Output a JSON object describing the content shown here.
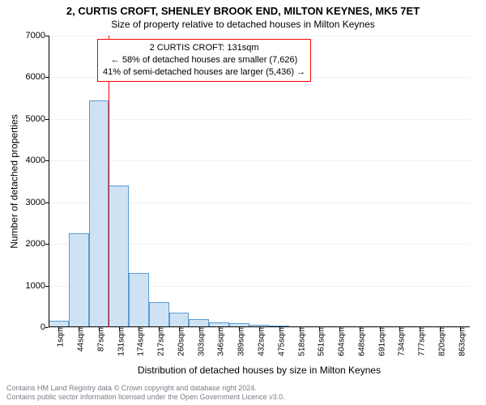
{
  "chart": {
    "type": "histogram",
    "title": "2, CURTIS CROFT, SHENLEY BROOK END, MILTON KEYNES, MK5 7ET",
    "subtitle": "Size of property relative to detached houses in Milton Keynes",
    "y_axis": {
      "label": "Number of detached properties",
      "min": 0,
      "max": 7000,
      "tick_step": 1000,
      "tick_labels": [
        "0",
        "1000",
        "2000",
        "3000",
        "4000",
        "5000",
        "6000",
        "7000"
      ],
      "label_fontsize": 12,
      "tick_fontsize": 11
    },
    "x_axis": {
      "label": "Distribution of detached houses by size in Milton Keynes",
      "tick_labels": [
        "1sqm",
        "44sqm",
        "87sqm",
        "131sqm",
        "174sqm",
        "217sqm",
        "260sqm",
        "303sqm",
        "346sqm",
        "389sqm",
        "432sqm",
        "475sqm",
        "518sqm",
        "561sqm",
        "604sqm",
        "648sqm",
        "691sqm",
        "734sqm",
        "777sqm",
        "820sqm",
        "863sqm"
      ],
      "label_fontsize": 12,
      "tick_fontsize": 10
    },
    "bars": {
      "values": [
        150,
        2250,
        5450,
        3400,
        1300,
        600,
        350,
        200,
        110,
        100,
        60,
        30,
        25,
        20,
        15,
        10,
        8,
        6,
        5,
        4,
        3
      ],
      "fill_color": "#cfe2f3",
      "border_color": "#5b9bd5",
      "border_width": 1,
      "width_ratio": 1.0
    },
    "grid": {
      "color": "#f0f0f0",
      "show": true
    },
    "marker": {
      "value_sqm": 131,
      "tick_index": 3,
      "line_color": "#ff0000",
      "line_width": 1
    },
    "annotation": {
      "lines": [
        "2 CURTIS CROFT: 131sqm",
        "← 58% of detached houses are smaller (7,626)",
        "41% of semi-detached houses are larger (5,436) →"
      ],
      "border_color": "#ff0000",
      "border_width": 1,
      "background": "#ffffff",
      "fontsize": 11
    },
    "background_color": "#ffffff",
    "footer": {
      "line1": "Contains HM Land Registry data © Crown copyright and database right 2024.",
      "line2": "Contains public sector information licensed under the Open Government Licence v3.0.",
      "color": "#777e86",
      "fontsize": 9
    }
  }
}
